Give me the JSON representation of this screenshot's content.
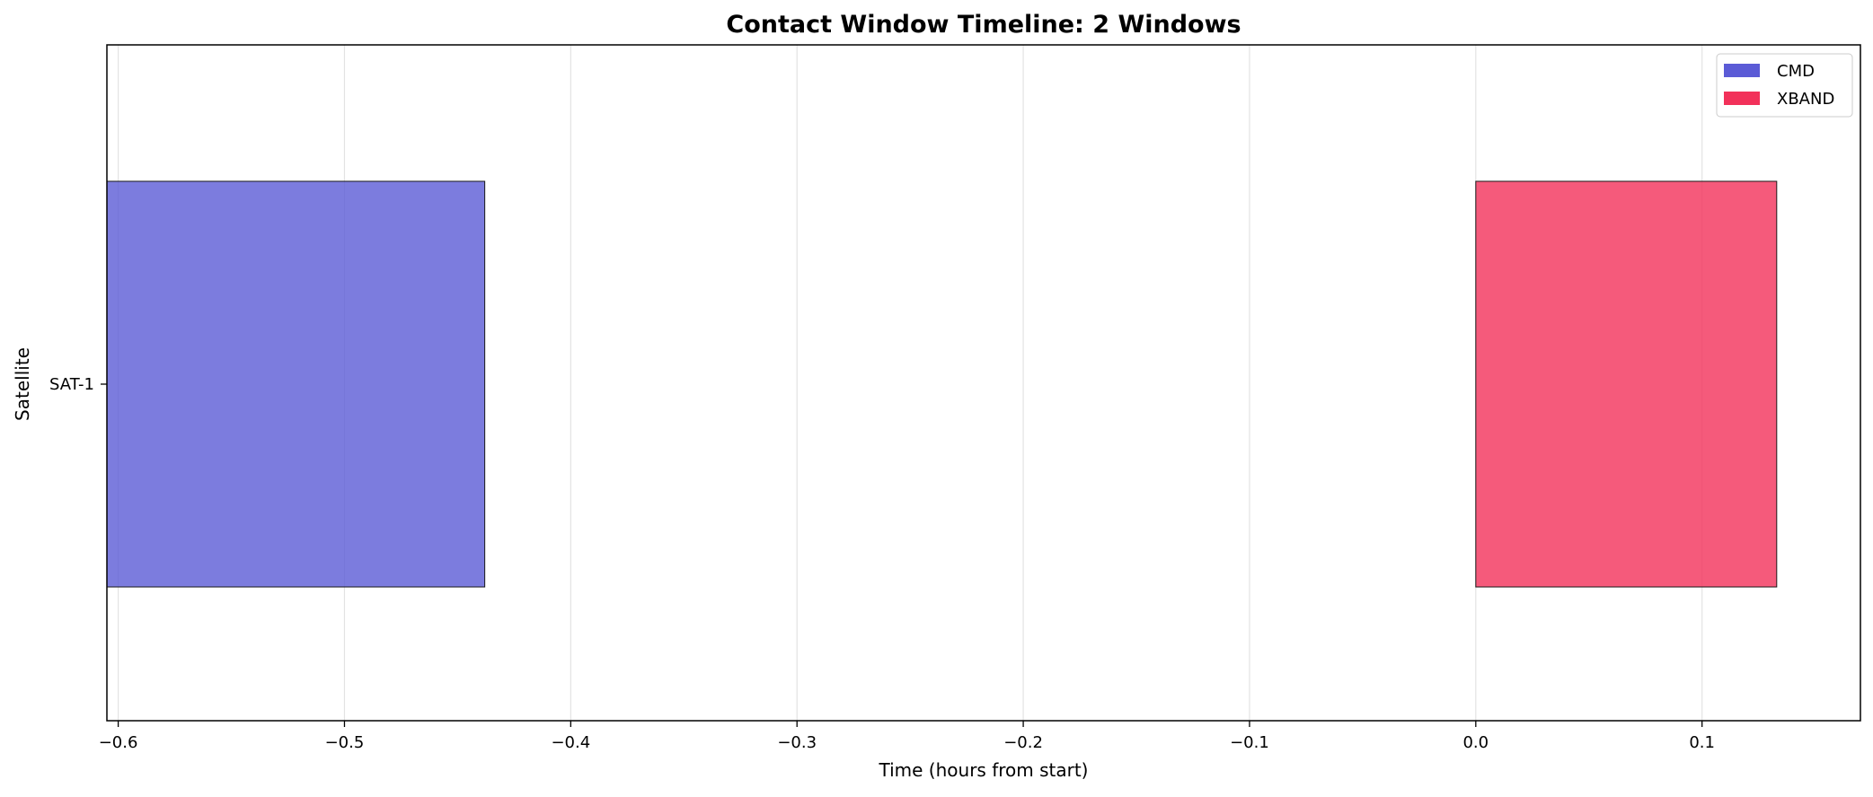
{
  "chart_data": {
    "type": "bar",
    "orientation": "horizontal",
    "title": "Contact Window Timeline: 2 Windows",
    "xlabel": "Time (hours from start)",
    "ylabel": "Satellite",
    "xlim": [
      -0.605,
      0.17
    ],
    "x_ticks": [
      -0.6,
      -0.5,
      -0.4,
      -0.3,
      -0.2,
      -0.1,
      0.0,
      0.1
    ],
    "x_tick_labels": [
      "−0.6",
      "−0.5",
      "−0.4",
      "−0.3",
      "−0.2",
      "−0.1",
      "0.0",
      "0.1"
    ],
    "categories": [
      "SAT-1"
    ],
    "grid": "vertical",
    "legend_position": "top-right",
    "series": [
      {
        "name": "CMD",
        "color": "#5b5bd6",
        "windows": [
          {
            "category": "SAT-1",
            "start": -0.605,
            "end": -0.438
          }
        ]
      },
      {
        "name": "XBAND",
        "color": "#f2315a",
        "windows": [
          {
            "category": "SAT-1",
            "start": 0.0,
            "end": 0.133
          }
        ]
      }
    ]
  }
}
